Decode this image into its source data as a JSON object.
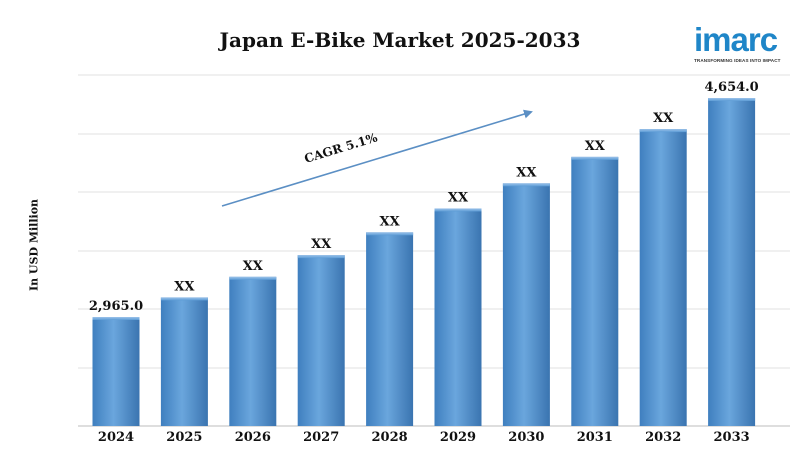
{
  "chart_data": {
    "type": "bar",
    "title": "Japan E-Bike Market 2025-2033",
    "ylabel": "In USD Million",
    "xlabel": "",
    "categories": [
      "2024",
      "2025",
      "2026",
      "2027",
      "2028",
      "2029",
      "2030",
      "2031",
      "2032",
      "2033"
    ],
    "values": [
      2965.0,
      3116,
      3275,
      3442,
      3618,
      3802,
      3996,
      4200,
      4414,
      4654.0
    ],
    "data_labels": [
      "2,965.0",
      "XX",
      "XX",
      "XX",
      "XX",
      "XX",
      "XX",
      "XX",
      "XX",
      "4,654.0"
    ],
    "annotation": "CAGR 5.1%",
    "grid": true,
    "legend": "none",
    "bar_color": "#5b9bd5"
  },
  "brand": {
    "name": "imarc",
    "tagline": "TRANSFORMING IDEAS INTO IMPACT",
    "color": "#1f86c8"
  }
}
